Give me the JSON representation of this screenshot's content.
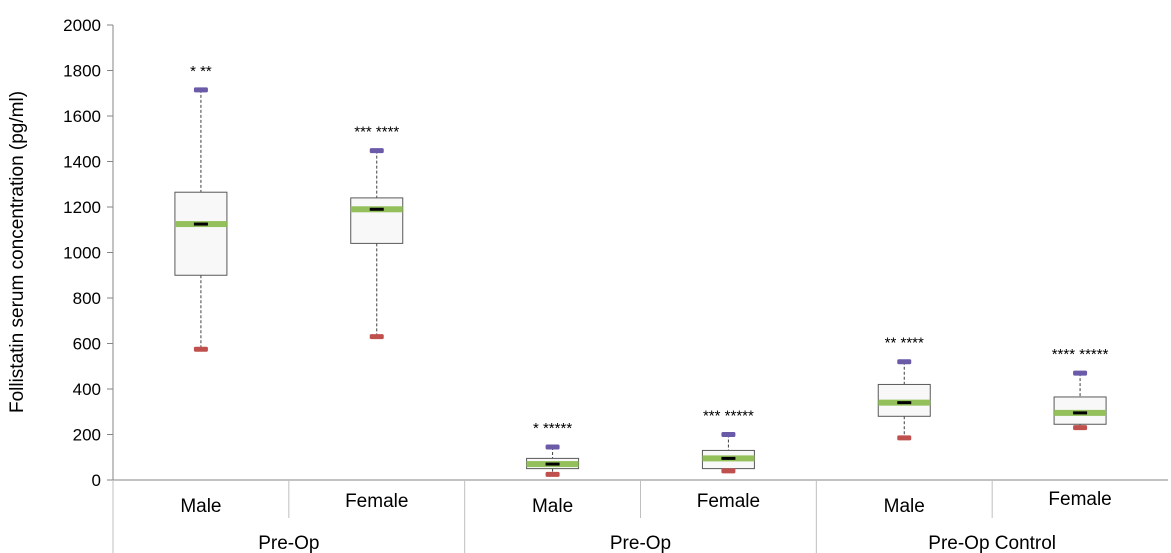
{
  "chart_data": {
    "type": "box",
    "title": "",
    "ylabel": "Follistatin serum concentration (pg/ml)",
    "xlabel": "",
    "ylim": [
      0,
      2000
    ],
    "yticks": [
      0,
      200,
      400,
      600,
      800,
      1000,
      1200,
      1400,
      1600,
      1800,
      2000
    ],
    "groups": [
      {
        "label": "Pre-Op"
      },
      {
        "label": "Pre-Op"
      },
      {
        "label": "Pre-Op Control"
      }
    ],
    "boxes": [
      {
        "category": "Male",
        "group": 0,
        "max": 1715,
        "q3": 1265,
        "median": 1125,
        "q1": 900,
        "min": 575,
        "annotation": "* **"
      },
      {
        "category": "Female",
        "group": 0,
        "max": 1448,
        "q3": 1240,
        "median": 1190,
        "q1": 1040,
        "min": 630,
        "annotation": "*** ****"
      },
      {
        "category": "Male",
        "group": 1,
        "max": 145,
        "q3": 95,
        "median": 70,
        "q1": 50,
        "min": 25,
        "annotation": "* *****"
      },
      {
        "category": "Female",
        "group": 1,
        "max": 200,
        "q3": 130,
        "median": 95,
        "q1": 50,
        "min": 40,
        "annotation": "*** *****"
      },
      {
        "category": "Male",
        "group": 2,
        "max": 520,
        "q3": 420,
        "median": 340,
        "q1": 280,
        "min": 185,
        "annotation": "** ****"
      },
      {
        "category": "Female",
        "group": 2,
        "max": 470,
        "q3": 365,
        "median": 295,
        "q1": 245,
        "min": 230,
        "annotation": "**** *****"
      }
    ],
    "colors": {
      "box_fill": "#f8f8f8",
      "box_stroke": "#595959",
      "median": "#93c05a",
      "mean_marker": "#000000",
      "max_marker": "#6a5aa8",
      "min_marker": "#c0504d",
      "whisker": "#404040",
      "axis": "#868686"
    }
  }
}
